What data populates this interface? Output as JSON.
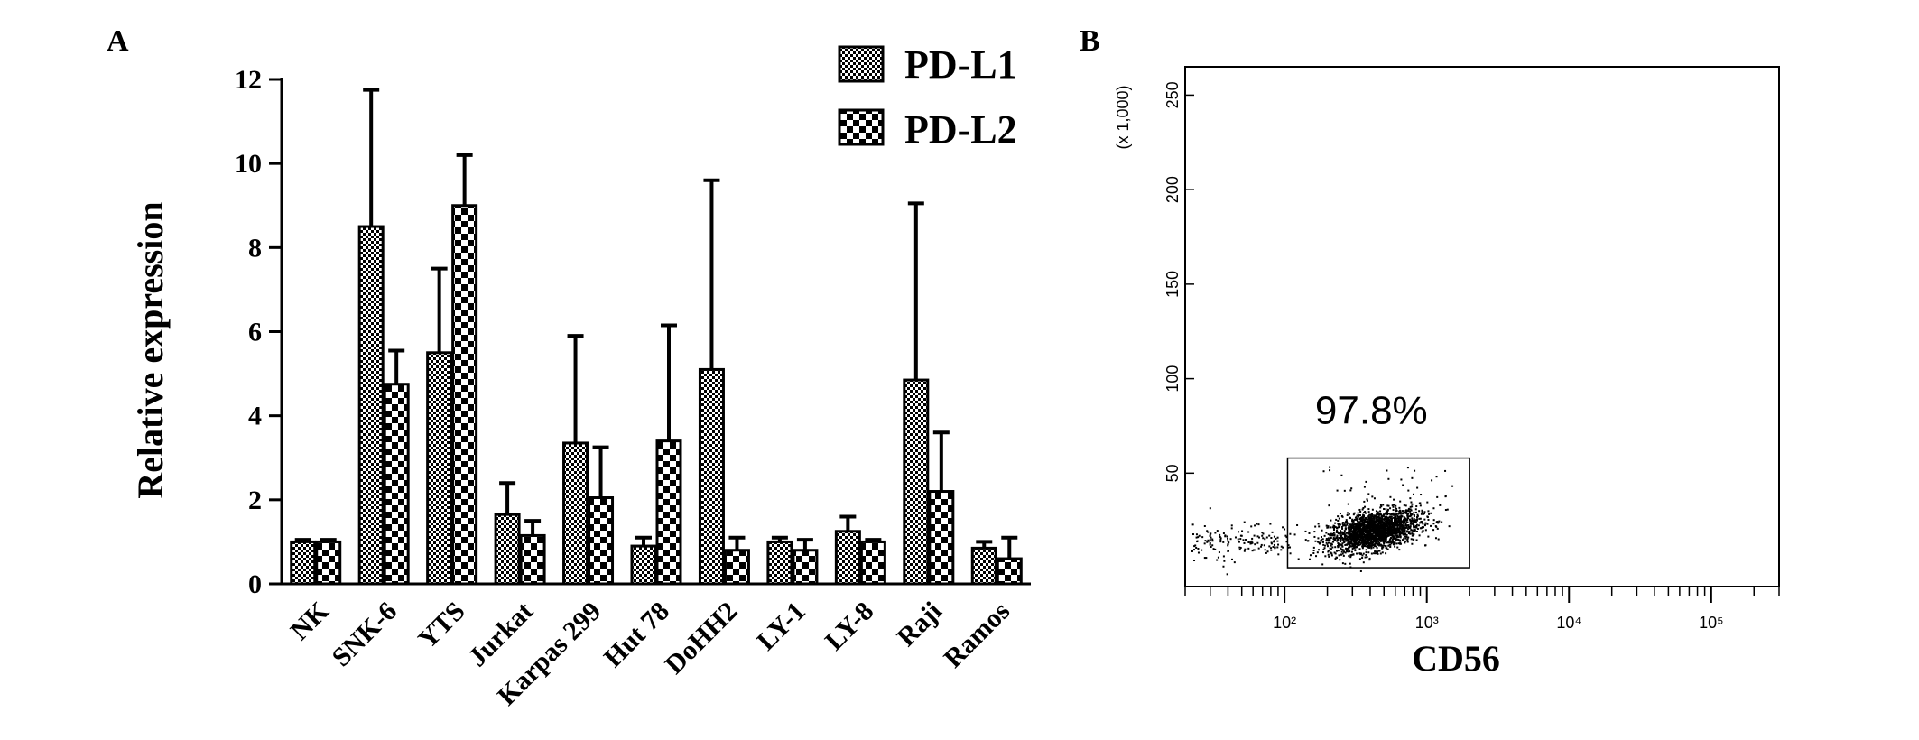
{
  "panel_a_letter": "A",
  "panel_b_letter": "B",
  "chart_data": [
    {
      "type": "bar",
      "panel": "A",
      "title": "",
      "xlabel": "",
      "ylabel": "Relative expression",
      "ylim": [
        0,
        12
      ],
      "yticks": [
        "0",
        "2",
        "4",
        "6",
        "8",
        "10",
        "12"
      ],
      "categories": [
        "NK",
        "SNK-6",
        "YTS",
        "Jurkat",
        "Karpas 299",
        "Hut 78",
        "DoHH2",
        "LY-1",
        "LY-8",
        "Raji",
        "Ramos"
      ],
      "series": [
        {
          "name": "PD-L1",
          "values": [
            1.0,
            8.5,
            5.5,
            1.65,
            3.35,
            0.9,
            5.1,
            1.0,
            1.25,
            4.85,
            0.85
          ],
          "error": [
            0.05,
            3.25,
            2.0,
            0.75,
            2.55,
            0.2,
            4.5,
            0.1,
            0.35,
            4.2,
            0.15
          ]
        },
        {
          "name": "PD-L2",
          "values": [
            1.0,
            4.75,
            9.0,
            1.15,
            2.05,
            3.4,
            0.8,
            0.8,
            1.0,
            2.2,
            0.6
          ],
          "error": [
            0.05,
            0.8,
            1.2,
            0.35,
            1.2,
            2.75,
            0.3,
            0.25,
            0.05,
            1.4,
            0.5
          ]
        }
      ],
      "legend_placement": "top-right",
      "grid": false
    },
    {
      "type": "scatter",
      "panel": "B",
      "title": "",
      "xlabel": "CD56",
      "ylabel": "",
      "x_scale": "log",
      "xlim": [
        20,
        300000
      ],
      "x_tick_labels": [
        "10²",
        "10³",
        "10⁴",
        "10⁵"
      ],
      "ylim": [
        -10,
        265
      ],
      "y_tick_labels": [
        "50",
        "100",
        "150",
        "200",
        "250"
      ],
      "y_multiplier_label": "(x 1,000)",
      "gate": {
        "label": "97.8%",
        "x_range": [
          105,
          2000
        ],
        "y_range": [
          0,
          58
        ]
      },
      "population": {
        "x_center": 420,
        "y_center": 20,
        "description_points": 2200
      },
      "grid": false
    }
  ]
}
